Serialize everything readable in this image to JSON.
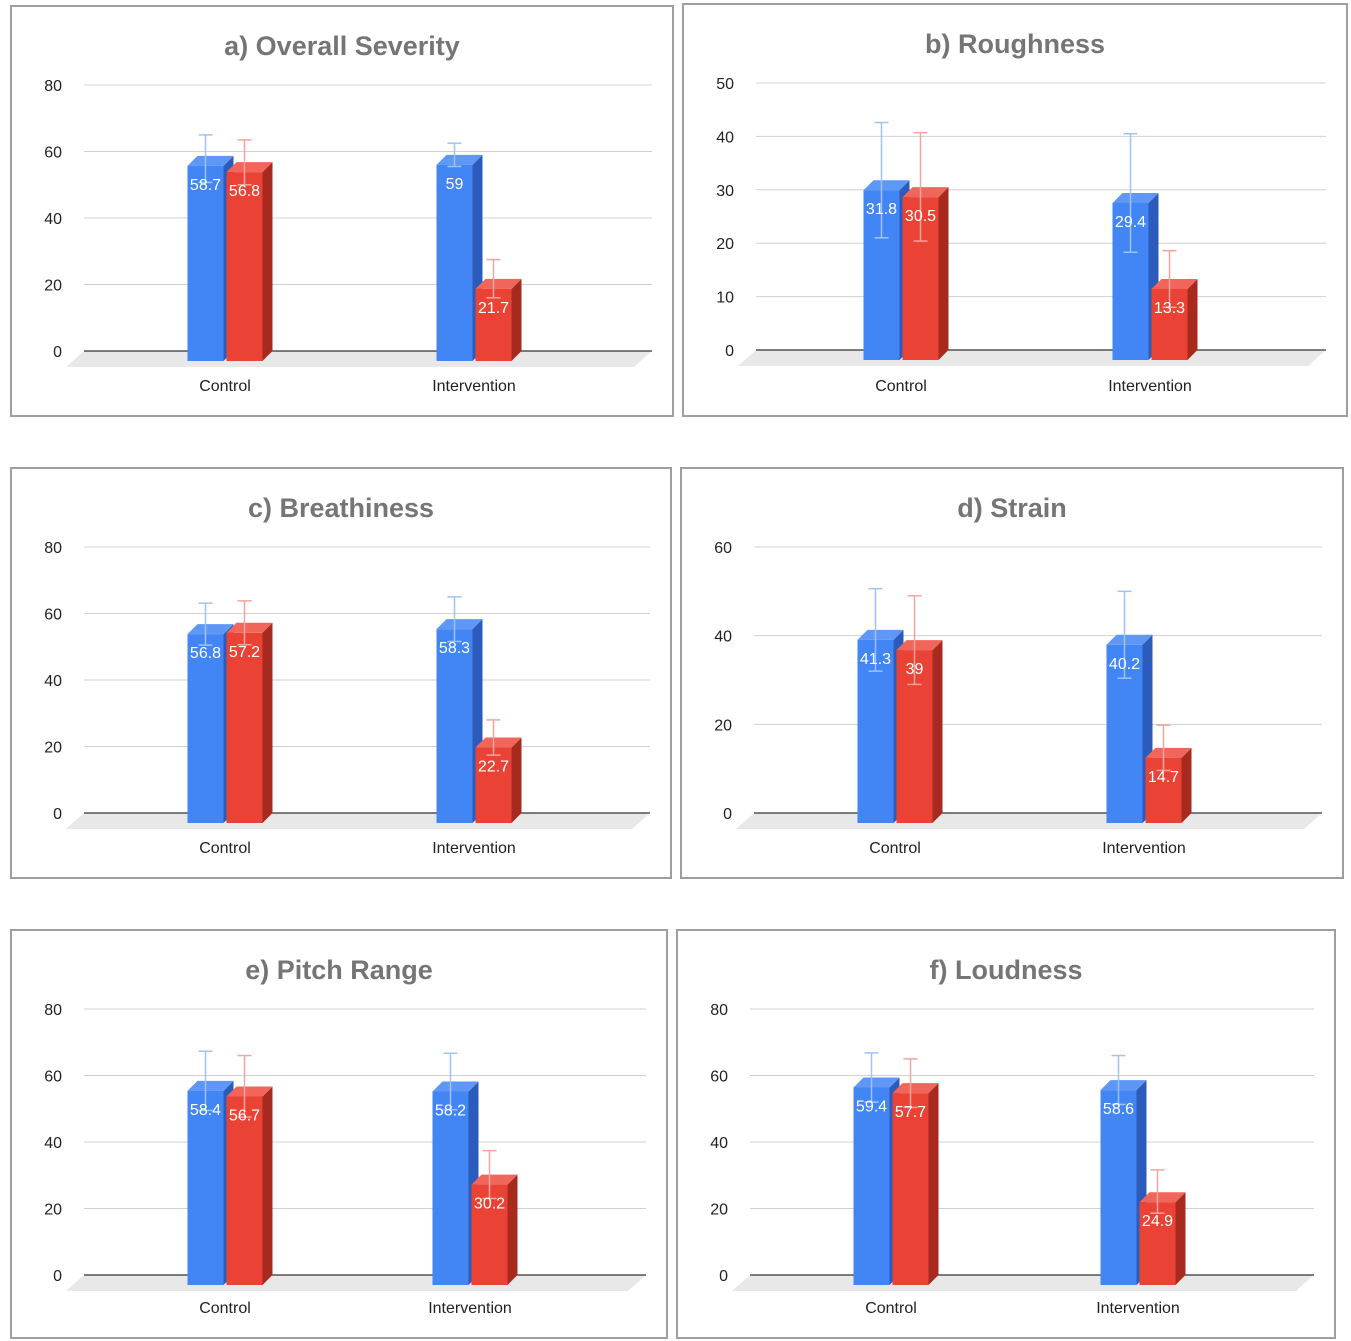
{
  "colors": {
    "series": [
      "#4285f4",
      "#ea4335"
    ],
    "series_side": [
      "#2b5cbb",
      "#a82a1f"
    ],
    "series_top": [
      "#5e97f6",
      "#f0665a"
    ],
    "series_error": [
      "#9fc3f9",
      "#f5a49d"
    ],
    "grid": "#d0d0d0",
    "floor": "#e8e8e8",
    "baseline": "#333333",
    "title": "#757575",
    "tick": "#222222"
  },
  "chart_data": [
    {
      "type": "bar",
      "title": "a) Overall Severity",
      "categories": [
        "Control",
        "Intervention"
      ],
      "ylim": [
        0,
        80
      ],
      "yticks": [
        "0",
        "20",
        "40",
        "60",
        "80"
      ],
      "grid": true,
      "series": [
        {
          "values": [
            58.7,
            59
          ],
          "labels": [
            "58.7",
            "59"
          ],
          "error_low": [
            50.7,
            55.5
          ],
          "error_high": [
            65,
            62.5
          ]
        },
        {
          "values": [
            56.8,
            21.7
          ],
          "labels": [
            "56.8",
            "21.7"
          ],
          "error_low": [
            50,
            16
          ],
          "error_high": [
            63.5,
            27.5
          ]
        }
      ]
    },
    {
      "type": "bar",
      "title": "b) Roughness",
      "categories": [
        "Control",
        "Intervention"
      ],
      "ylim": [
        0,
        50
      ],
      "yticks": [
        "0",
        "10",
        "20",
        "30",
        "40",
        "50"
      ],
      "grid": true,
      "series": [
        {
          "values": [
            31.8,
            29.4
          ],
          "labels": [
            "31.8",
            "29.4"
          ],
          "error_low": [
            21,
            18.3
          ],
          "error_high": [
            42.6,
            40.5
          ]
        },
        {
          "values": [
            30.5,
            13.3
          ],
          "labels": [
            "30.5",
            "13.3"
          ],
          "error_low": [
            20.4,
            8
          ],
          "error_high": [
            40.7,
            18.6
          ]
        }
      ]
    },
    {
      "type": "bar",
      "title": "c) Breathiness",
      "categories": [
        "Control",
        "Intervention"
      ],
      "ylim": [
        0,
        80
      ],
      "yticks": [
        "0",
        "20",
        "40",
        "60",
        "80"
      ],
      "grid": true,
      "series": [
        {
          "values": [
            56.8,
            58.3
          ],
          "labels": [
            "56.8",
            "58.3"
          ],
          "error_low": [
            50.5,
            51.6
          ],
          "error_high": [
            63.1,
            65
          ]
        },
        {
          "values": [
            57.2,
            22.7
          ],
          "labels": [
            "57.2",
            "22.7"
          ],
          "error_low": [
            50.6,
            17.4
          ],
          "error_high": [
            63.8,
            28
          ]
        }
      ]
    },
    {
      "type": "bar",
      "title": "d) Strain",
      "categories": [
        "Control",
        "Intervention"
      ],
      "ylim": [
        0,
        60
      ],
      "yticks": [
        "0",
        "20",
        "40",
        "60"
      ],
      "grid": true,
      "series": [
        {
          "values": [
            41.3,
            40.2
          ],
          "labels": [
            "41.3",
            "40.2"
          ],
          "error_low": [
            32,
            30.4
          ],
          "error_high": [
            50.6,
            50
          ]
        },
        {
          "values": [
            39,
            14.7
          ],
          "labels": [
            "39",
            "14.7"
          ],
          "error_low": [
            29,
            9.6
          ],
          "error_high": [
            49,
            19.8
          ]
        }
      ]
    },
    {
      "type": "bar",
      "title": "e) Pitch Range",
      "categories": [
        "Control",
        "Intervention"
      ],
      "ylim": [
        0,
        80
      ],
      "yticks": [
        "0",
        "20",
        "40",
        "60",
        "80"
      ],
      "grid": true,
      "series": [
        {
          "values": [
            58.4,
            58.2
          ],
          "labels": [
            "58.4",
            "58.2"
          ],
          "error_low": [
            49.5,
            49.7
          ],
          "error_high": [
            67.3,
            66.7
          ]
        },
        {
          "values": [
            56.7,
            30.2
          ],
          "labels": [
            "56.7",
            "30.2"
          ],
          "error_low": [
            47.5,
            23
          ],
          "error_high": [
            66,
            37.4
          ]
        }
      ]
    },
    {
      "type": "bar",
      "title": "f) Loudness",
      "categories": [
        "Control",
        "Intervention"
      ],
      "ylim": [
        0,
        80
      ],
      "yticks": [
        "0",
        "20",
        "40",
        "60",
        "80"
      ],
      "grid": true,
      "series": [
        {
          "values": [
            59.4,
            58.6
          ],
          "labels": [
            "59.4",
            "58.6"
          ],
          "error_low": [
            52,
            51.3
          ],
          "error_high": [
            66.8,
            66
          ]
        },
        {
          "values": [
            57.7,
            24.9
          ],
          "labels": [
            "57.7",
            "24.9"
          ],
          "error_low": [
            50.4,
            18.6
          ],
          "error_high": [
            65,
            31.6
          ]
        }
      ]
    }
  ]
}
